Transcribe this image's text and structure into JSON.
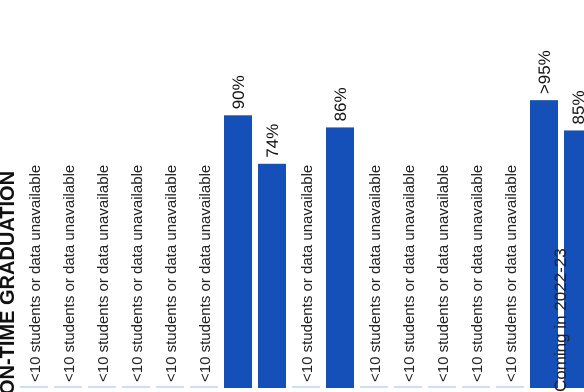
{
  "heading": "ON-TIME GRADUATION",
  "footnote": "Coming in 2022-23",
  "colors": {
    "bar": "#1550b8",
    "stub": "#cddff2",
    "text": "#222222"
  },
  "chart_data": {
    "type": "bar",
    "orientation": "vertical-bars, rotated text",
    "ylim": [
      0,
      100
    ],
    "unavailable_label": "<10 students or data unavailable",
    "bars": [
      {
        "value": null,
        "label": "<10 students or data unavailable"
      },
      {
        "value": null,
        "label": "<10 students or data unavailable"
      },
      {
        "value": null,
        "label": "<10 students or data unavailable"
      },
      {
        "value": null,
        "label": "<10 students or data unavailable"
      },
      {
        "value": null,
        "label": "<10 students or data unavailable"
      },
      {
        "value": null,
        "label": "<10 students or data unavailable"
      },
      {
        "value": 90,
        "label": "90%"
      },
      {
        "value": 74,
        "label": "74%"
      },
      {
        "value": null,
        "label": "<10 students or data unavailable"
      },
      {
        "value": 86,
        "label": "86%"
      },
      {
        "value": null,
        "label": "<10 students or data unavailable"
      },
      {
        "value": null,
        "label": "<10 students or data unavailable"
      },
      {
        "value": null,
        "label": "<10 students or data unavailable"
      },
      {
        "value": null,
        "label": "<10 students or data unavailable"
      },
      {
        "value": null,
        "label": "<10 students or data unavailable"
      },
      {
        "value": 95,
        "label": ">95%"
      },
      {
        "value": 85,
        "label": "85%"
      }
    ]
  }
}
